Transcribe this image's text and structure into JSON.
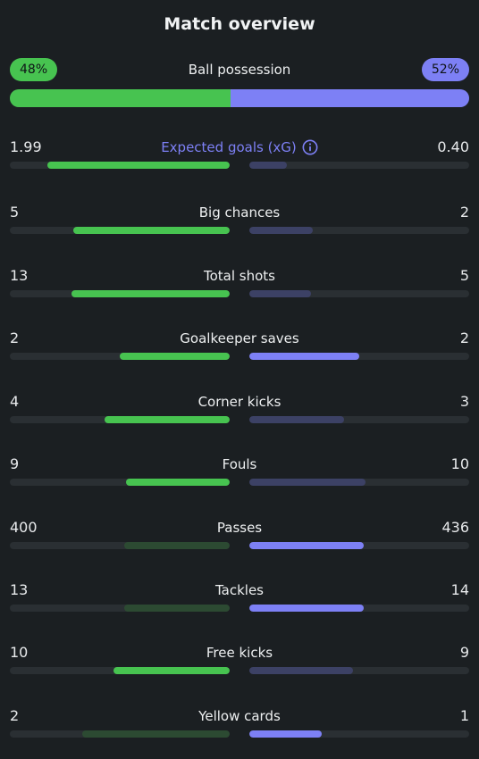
{
  "title": "Match overview",
  "possession": {
    "label": "Ball possession",
    "home_text": "48%",
    "away_text": "52%",
    "home_pct": 48,
    "away_pct": 52
  },
  "colors": {
    "home": "#47c350",
    "home_muted": "#2c4a32",
    "away": "#7d80f5",
    "away_muted": "#3c4165",
    "track": "#2a2f33"
  },
  "stats": [
    {
      "label": "Expected goals (xG)",
      "home": "1.99",
      "away": "0.40",
      "home_fill": 0.83,
      "away_fill": 0.17,
      "home_style": "strong",
      "away_style": "muted",
      "info": true
    },
    {
      "label": "Big chances",
      "home": "5",
      "away": "2",
      "home_fill": 0.71,
      "away_fill": 0.29,
      "home_style": "strong",
      "away_style": "muted"
    },
    {
      "label": "Total shots",
      "home": "13",
      "away": "5",
      "home_fill": 0.72,
      "away_fill": 0.28,
      "home_style": "strong",
      "away_style": "muted"
    },
    {
      "label": "Goalkeeper saves",
      "home": "2",
      "away": "2",
      "home_fill": 0.5,
      "away_fill": 0.5,
      "home_style": "strong",
      "away_style": "strong"
    },
    {
      "label": "Corner kicks",
      "home": "4",
      "away": "3",
      "home_fill": 0.57,
      "away_fill": 0.43,
      "home_style": "strong",
      "away_style": "muted"
    },
    {
      "label": "Fouls",
      "home": "9",
      "away": "10",
      "home_fill": 0.47,
      "away_fill": 0.53,
      "home_style": "strong",
      "away_style": "muted"
    },
    {
      "label": "Passes",
      "home": "400",
      "away": "436",
      "home_fill": 0.48,
      "away_fill": 0.52,
      "home_style": "muted",
      "away_style": "strong"
    },
    {
      "label": "Tackles",
      "home": "13",
      "away": "14",
      "home_fill": 0.48,
      "away_fill": 0.52,
      "home_style": "muted",
      "away_style": "strong"
    },
    {
      "label": "Free kicks",
      "home": "10",
      "away": "9",
      "home_fill": 0.53,
      "away_fill": 0.47,
      "home_style": "strong",
      "away_style": "muted"
    },
    {
      "label": "Yellow cards",
      "home": "2",
      "away": "1",
      "home_fill": 0.67,
      "away_fill": 0.33,
      "home_style": "muted",
      "away_style": "strong"
    }
  ]
}
